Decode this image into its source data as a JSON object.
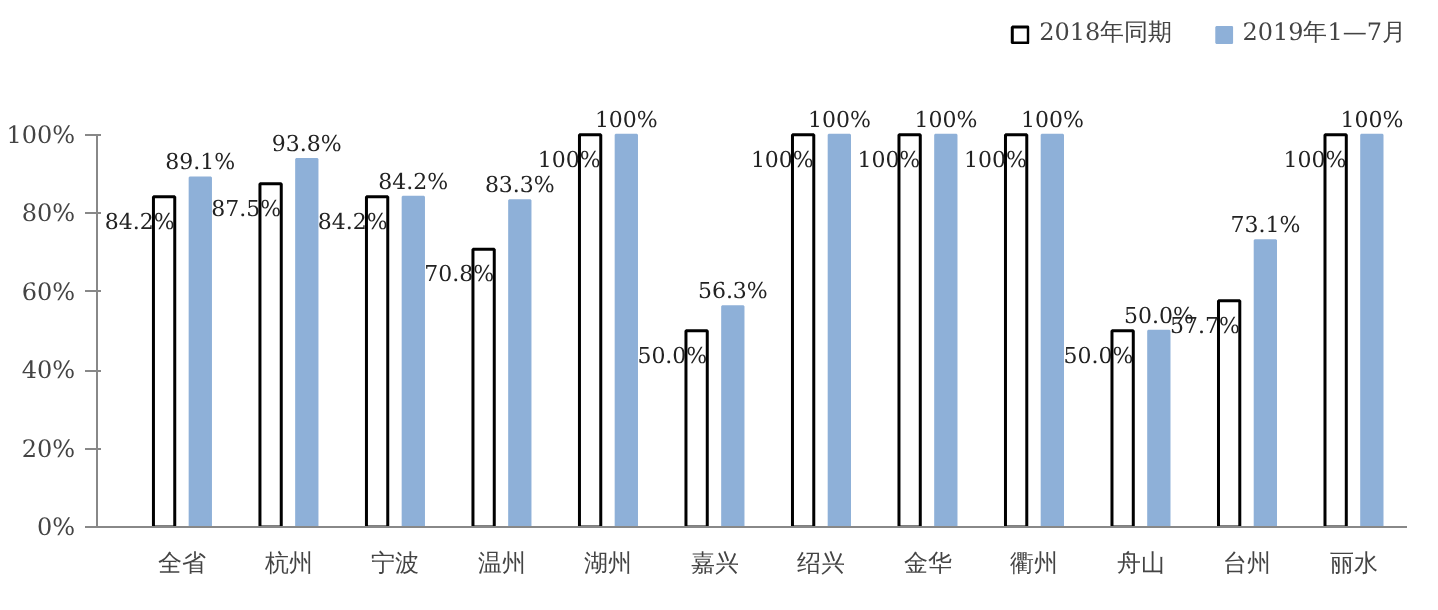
{
  "chart_data": {
    "type": "bar",
    "categories": [
      "全省",
      "杭州",
      "宁波",
      "温州",
      "湖州",
      "嘉兴",
      "绍兴",
      "金华",
      "衢州",
      "舟山",
      "台州",
      "丽水"
    ],
    "series": [
      {
        "name": "2018年同期",
        "color": "#ffffff",
        "values": [
          84.2,
          87.5,
          84.2,
          70.8,
          100,
          50.0,
          100,
          100,
          100,
          50.0,
          57.7,
          100
        ],
        "value_labels": [
          "84.2%",
          "87.5%",
          "84.2%",
          "70.8%",
          "100%",
          "50.0%",
          "100%",
          "100%",
          "100%",
          "50.0%",
          "57.7%",
          "100%"
        ]
      },
      {
        "name": "2019年1—7月",
        "color": "#8eb0d8",
        "values": [
          89.1,
          93.8,
          84.2,
          83.3,
          100,
          56.3,
          100,
          100,
          100,
          50.0,
          73.1,
          100
        ],
        "value_labels": [
          "89.1%",
          "93.8%",
          "84.2%",
          "83.3%",
          "100%",
          "56.3%",
          "100%",
          "100%",
          "100%",
          "50.0%",
          "73.1%",
          "100%"
        ]
      }
    ],
    "ylim": [
      0,
      100
    ],
    "yticks": [
      {
        "value": 0,
        "label": "0%"
      },
      {
        "value": 20,
        "label": "20%"
      },
      {
        "value": 40,
        "label": "40%"
      },
      {
        "value": 60,
        "label": "60%"
      },
      {
        "value": 80,
        "label": "80%"
      },
      {
        "value": 100,
        "label": "100%"
      }
    ],
    "grid": false,
    "legend": "top right"
  }
}
